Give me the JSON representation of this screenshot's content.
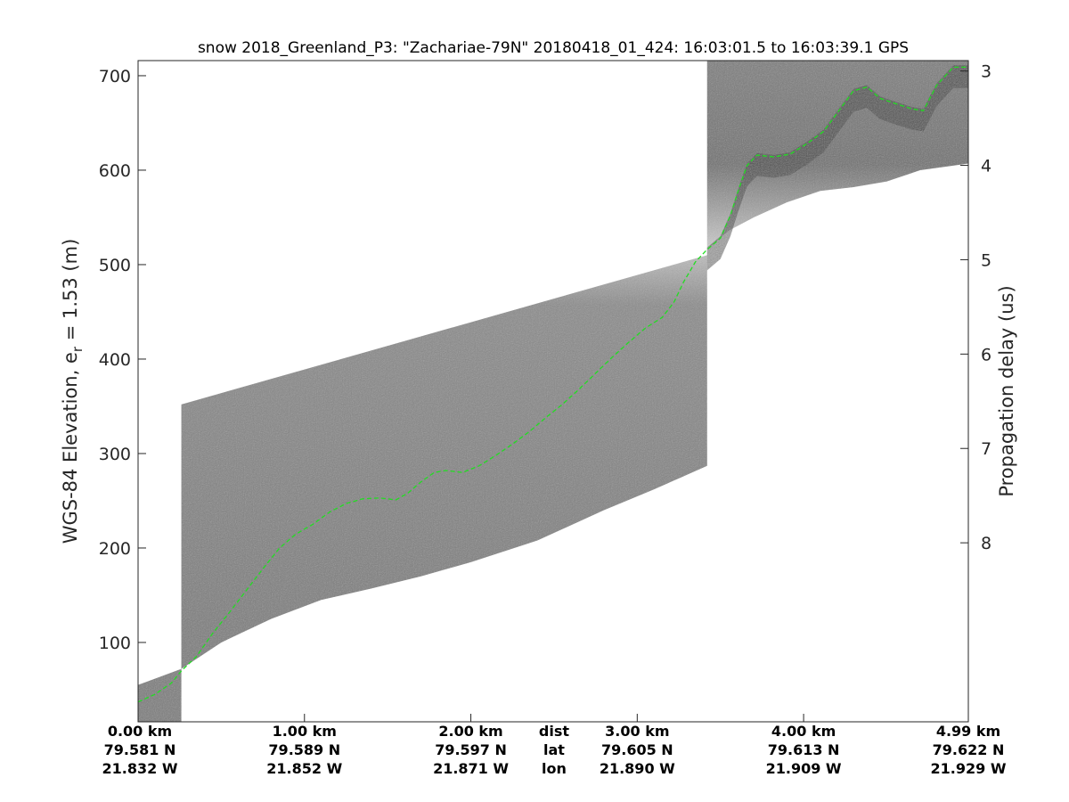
{
  "chart_data": {
    "type": "radar-echogram",
    "title": "snow 2018_Greenland_P3: \"Zachariae-79N\"  20180418_01_424: 16:03:01.5 to 16:03:39.1 GPS",
    "ylabel_left_main": "WGS-84 Elevation, e",
    "ylabel_left_sub": "r",
    "ylabel_left_rest": " = 1.53 (m)",
    "ylabel_right": "Propagation delay (us)",
    "ylim": [
      16,
      716
    ],
    "yticks_left": [
      100,
      200,
      300,
      400,
      500,
      600,
      700
    ],
    "yticks_right": [
      "3",
      "4",
      "5",
      "6",
      "7",
      "8"
    ],
    "y2_values_us": [
      3,
      4,
      5,
      6,
      7,
      8
    ],
    "y2_elevation_at": [
      705,
      605.1,
      505.2,
      405.3,
      305.4,
      205.5
    ],
    "xlim_km": [
      0,
      4.99
    ],
    "x_labels": [
      {
        "dist": "0.00 km",
        "lat": "79.581 N",
        "lon": "21.832 W",
        "km": 0.0
      },
      {
        "dist": "1.00 km",
        "lat": "79.589 N",
        "lon": "21.852 W",
        "km": 1.0
      },
      {
        "dist": "2.00 km",
        "lat": "79.597 N",
        "lon": "21.871 W",
        "km": 2.0
      },
      {
        "dist": "3.00 km",
        "lat": "79.605 N",
        "lon": "21.890 W",
        "km": 3.0
      },
      {
        "dist": "4.00 km",
        "lat": "79.613 N",
        "lon": "21.909 W",
        "km": 4.0
      },
      {
        "dist": "4.99 km",
        "lat": "79.622 N",
        "lon": "21.929 W",
        "km": 4.99
      }
    ],
    "row_names": {
      "dist": "dist",
      "lat": "lat",
      "lon": "lon",
      "km": 2.5
    },
    "segments": [
      {
        "x": [
          0.0,
          0.26
        ],
        "top": [
          55,
          72
        ],
        "bottom": [
          16,
          16
        ]
      },
      {
        "x": [
          0.26,
          3.42
        ],
        "top": [
          352,
          510
        ],
        "bottom": [
          72,
          287
        ]
      },
      {
        "x": [
          3.42,
          4.99
        ],
        "top": [
          716,
          716
        ],
        "bottom": [
          516,
          607
        ]
      }
    ],
    "segment_lower_edge_3": [
      [
        3.42,
        516
      ],
      [
        3.55,
        536
      ],
      [
        3.7,
        550
      ],
      [
        3.9,
        566
      ],
      [
        4.1,
        578
      ],
      [
        4.3,
        582
      ],
      [
        4.5,
        588
      ],
      [
        4.7,
        600
      ],
      [
        4.99,
        607
      ]
    ],
    "segment_lower_edge_2": [
      [
        0.26,
        72
      ],
      [
        0.5,
        100
      ],
      [
        0.8,
        125
      ],
      [
        1.1,
        145
      ],
      [
        1.4,
        157
      ],
      [
        1.7,
        170
      ],
      [
        2.0,
        185
      ],
      [
        2.4,
        208
      ],
      [
        2.8,
        240
      ],
      [
        3.1,
        262
      ],
      [
        3.42,
        287
      ]
    ],
    "surface": {
      "color": "#22dd22",
      "points": [
        [
          0.0,
          37
        ],
        [
          0.1,
          45
        ],
        [
          0.2,
          57
        ],
        [
          0.26,
          70
        ],
        [
          0.35,
          85
        ],
        [
          0.45,
          110
        ],
        [
          0.55,
          132
        ],
        [
          0.65,
          155
        ],
        [
          0.75,
          178
        ],
        [
          0.85,
          200
        ],
        [
          0.95,
          215
        ],
        [
          1.05,
          225
        ],
        [
          1.15,
          238
        ],
        [
          1.25,
          247
        ],
        [
          1.35,
          252
        ],
        [
          1.45,
          253
        ],
        [
          1.55,
          251
        ],
        [
          1.62,
          258
        ],
        [
          1.7,
          270
        ],
        [
          1.78,
          280
        ],
        [
          1.85,
          282
        ],
        [
          1.95,
          280
        ],
        [
          2.05,
          287
        ],
        [
          2.15,
          298
        ],
        [
          2.25,
          310
        ],
        [
          2.35,
          323
        ],
        [
          2.45,
          338
        ],
        [
          2.55,
          352
        ],
        [
          2.65,
          368
        ],
        [
          2.75,
          385
        ],
        [
          2.85,
          402
        ],
        [
          2.95,
          418
        ],
        [
          3.05,
          433
        ],
        [
          3.15,
          444
        ],
        [
          3.22,
          460
        ],
        [
          3.28,
          482
        ],
        [
          3.35,
          503
        ],
        [
          3.42,
          516
        ],
        [
          3.5,
          528
        ],
        [
          3.56,
          552
        ],
        [
          3.61,
          580
        ],
        [
          3.66,
          605
        ],
        [
          3.72,
          616
        ],
        [
          3.82,
          614
        ],
        [
          3.92,
          617
        ],
        [
          4.02,
          628
        ],
        [
          4.12,
          641
        ],
        [
          4.2,
          660
        ],
        [
          4.3,
          684
        ],
        [
          4.38,
          688
        ],
        [
          4.46,
          676
        ],
        [
          4.56,
          670
        ],
        [
          4.65,
          665
        ],
        [
          4.72,
          663
        ],
        [
          4.8,
          690
        ],
        [
          4.9,
          709
        ],
        [
          4.99,
          709
        ]
      ]
    },
    "grid": false
  }
}
